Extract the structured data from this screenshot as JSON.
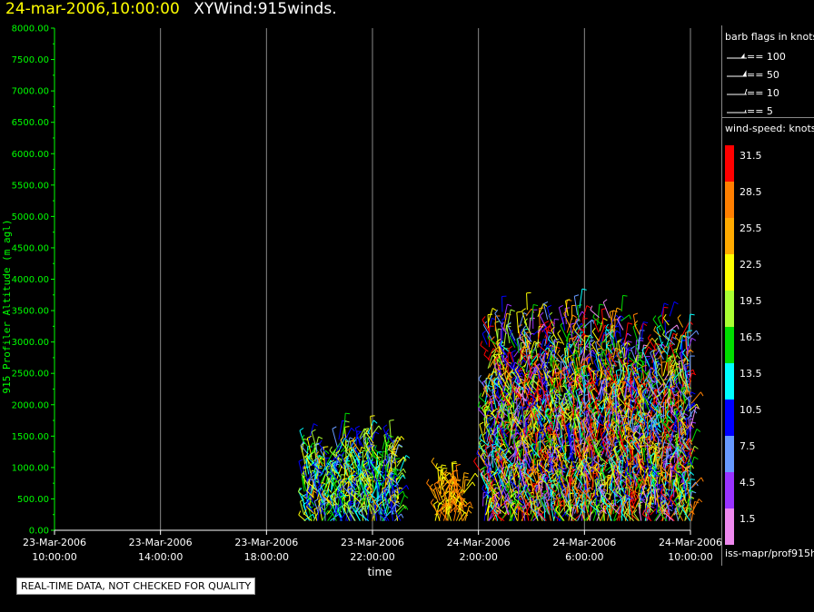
{
  "header": {
    "date_label": "24-mar-2006,10:00:00",
    "product_label": "XYWind:915winds."
  },
  "footer": {
    "quality_notice": "REAL-TIME DATA, NOT CHECKED FOR QUALITY"
  },
  "side_panel": {
    "barb_title": "barb flags in knots",
    "barb_legend": [
      "== 100",
      "== 50",
      "== 10",
      "== 5"
    ],
    "speed_title": "wind-speed: knots",
    "speed_bins": [
      {
        "label": "31.5",
        "color": "#ff0000"
      },
      {
        "label": "28.5",
        "color": "#ff7f00"
      },
      {
        "label": "25.5",
        "color": "#ffaa00"
      },
      {
        "label": "22.5",
        "color": "#ffff00"
      },
      {
        "label": "19.5",
        "color": "#aaff33"
      },
      {
        "label": "16.5",
        "color": "#00dd00"
      },
      {
        "label": "13.5",
        "color": "#00ffff"
      },
      {
        "label": "10.5",
        "color": "#0000ff"
      },
      {
        "label": "7.5",
        "color": "#6699ff"
      },
      {
        "label": "4.5",
        "color": "#9933ff"
      },
      {
        "label": "1.5",
        "color": "#ee88ee"
      }
    ],
    "source_label": "iss-mapr/prof915h"
  },
  "chart_data": {
    "type": "scatter",
    "title": "XYWind:915winds.",
    "xlabel": "time",
    "ylabel": "915 Profiler Altitude (m agl)",
    "ylim": [
      0,
      8000
    ],
    "xlim_hours": [
      0,
      24
    ],
    "y_ticks": [
      "0.00",
      "500.00",
      "1000.00",
      "1500.00",
      "2000.00",
      "2500.00",
      "3000.00",
      "3500.00",
      "4000.00",
      "4500.00",
      "5000.00",
      "5500.00",
      "6000.00",
      "6500.00",
      "7000.00",
      "7500.00",
      "8000.00"
    ],
    "x_ticks": [
      {
        "line1": "23-Mar-2006",
        "line2": "10:00:00"
      },
      {
        "line1": "23-Mar-2006",
        "line2": "14:00:00"
      },
      {
        "line1": "23-Mar-2006",
        "line2": "18:00:00"
      },
      {
        "line1": "23-Mar-2006",
        "line2": "22:00:00"
      },
      {
        "line1": "24-Mar-2006",
        "line2": "2:00:00"
      },
      {
        "line1": "24-Mar-2006",
        "line2": "6:00:00"
      },
      {
        "line1": "24-Mar-2006",
        "line2": "10:00:00"
      }
    ],
    "grid": "vertical lines at x ticks",
    "axis_color": "#00ff00",
    "series": [
      {
        "hours_range": [
          9.4,
          13.0
        ],
        "altitude_range": [
          150,
          1600
        ],
        "speed_range": [
          7,
          25
        ]
      },
      {
        "hours_range": [
          14.4,
          15.5
        ],
        "altitude_range": [
          150,
          1050
        ],
        "speed_range": [
          21,
          30
        ]
      },
      {
        "hours_range": [
          16.2,
          24.0
        ],
        "altitude_range": [
          150,
          3600
        ],
        "speed_range": [
          2,
          34
        ]
      }
    ]
  }
}
